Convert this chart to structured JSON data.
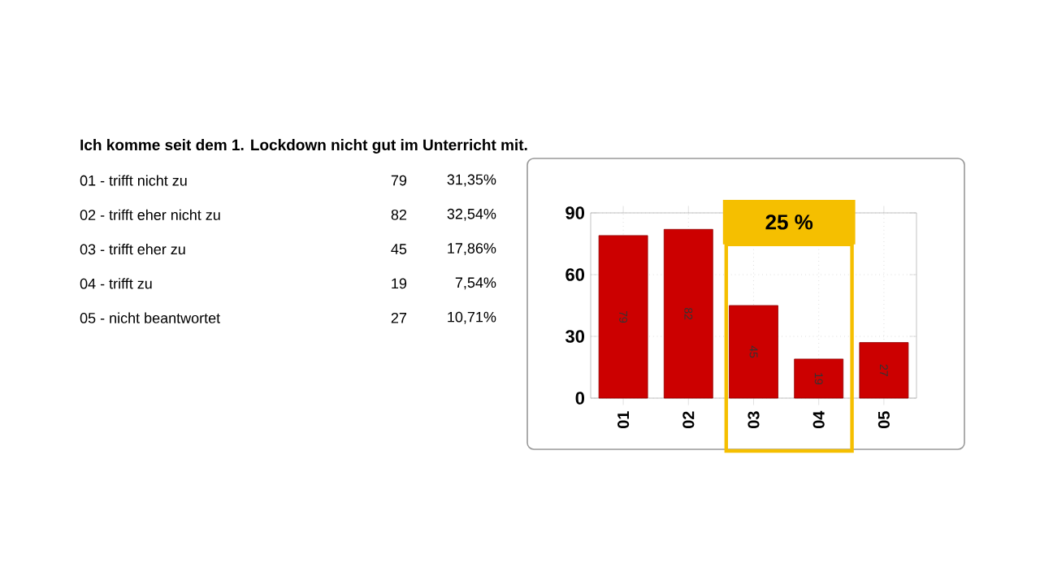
{
  "chart_data": {
    "type": "bar",
    "title": "Ich komme seit dem 1. Lockdown nicht gut im Unterricht mit.",
    "categories": [
      "01",
      "02",
      "03",
      "04",
      "05"
    ],
    "values": [
      79,
      82,
      45,
      19,
      27
    ],
    "color": "#cc0000",
    "ylim": [
      0,
      90
    ],
    "yticks": [
      0,
      30,
      60,
      90
    ],
    "grid": true,
    "data_labels": true,
    "bands": [
      {
        "axis": "x",
        "from": "03",
        "to": "04",
        "label": "25 %",
        "color": "#f5bf00"
      }
    ],
    "annotations": [
      "01 - trifft nicht zu",
      "79",
      "31,35%",
      "02 - trifft eher nicht zu",
      "82",
      "32,54%",
      "03 - trifft eher zu",
      "45",
      "17,86%",
      "04 - trifft zu",
      "19",
      "7,54%",
      "05 - nicht beantwortet",
      "27",
      "10,71%"
    ]
  }
}
